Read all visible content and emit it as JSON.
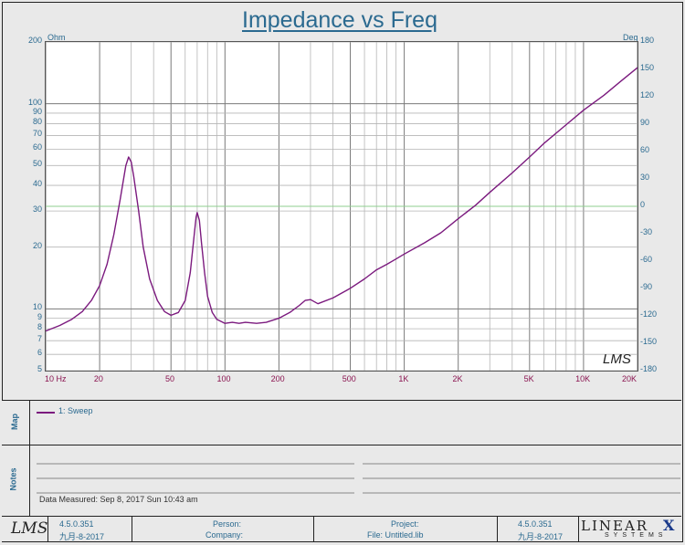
{
  "chart_data": {
    "type": "line",
    "title": "Impedance vs Freq",
    "left_unit": "Ohm",
    "right_unit": "Deg",
    "x_scale": "log",
    "y_scale": "log",
    "xlim": [
      10,
      20000
    ],
    "ylim": [
      5,
      200
    ],
    "y2lim": [
      -180,
      180
    ],
    "x_tick_labels": [
      "10 Hz",
      "20",
      "50",
      "100",
      "200",
      "500",
      "1K",
      "2K",
      "5K",
      "10K",
      "20K"
    ],
    "x_tick_values": [
      10,
      20,
      50,
      100,
      200,
      500,
      1000,
      2000,
      5000,
      10000,
      20000
    ],
    "y_tick_labels": [
      "200",
      "100",
      "90",
      "80",
      "70",
      "60",
      "50",
      "40",
      "30",
      "20",
      "10",
      "9",
      "8",
      "7",
      "6",
      "5"
    ],
    "y_tick_values": [
      200,
      100,
      90,
      80,
      70,
      60,
      50,
      40,
      30,
      20,
      10,
      9,
      8,
      7,
      6,
      5
    ],
    "y2_tick_labels": [
      "180",
      "150",
      "120",
      "90",
      "60",
      "30",
      "0",
      "-30",
      "-60",
      "-90",
      "-120",
      "-150",
      "-180"
    ],
    "y2_tick_values": [
      180,
      150,
      120,
      90,
      60,
      30,
      0,
      -30,
      -60,
      -90,
      -120,
      -150,
      -180
    ],
    "grid": true,
    "series": [
      {
        "name": "1: Sweep",
        "color": "#7b1a7e",
        "x": [
          10,
          12,
          14,
          16,
          18,
          20,
          22,
          24,
          26,
          28,
          29,
          30,
          31,
          33,
          35,
          38,
          42,
          46,
          50,
          55,
          60,
          64,
          67,
          69,
          70,
          72,
          74,
          77,
          80,
          85,
          90,
          100,
          110,
          120,
          130,
          150,
          170,
          200,
          230,
          260,
          280,
          300,
          330,
          400,
          500,
          600,
          700,
          800,
          900,
          1000,
          1300,
          1600,
          2000,
          2500,
          3000,
          4000,
          5000,
          6000,
          8000,
          10000,
          13000,
          16000,
          20000
        ],
        "y": [
          7.8,
          8.3,
          8.9,
          9.7,
          11,
          13,
          16.5,
          23,
          34,
          50,
          55,
          52,
          44,
          30,
          20,
          14,
          11,
          9.7,
          9.3,
          9.6,
          11,
          15,
          22,
          28,
          29.5,
          27,
          21,
          15,
          11.5,
          9.6,
          8.9,
          8.5,
          8.6,
          8.5,
          8.6,
          8.5,
          8.6,
          9,
          9.6,
          10.4,
          11,
          11.1,
          10.6,
          11.3,
          12.6,
          14,
          15.5,
          16.5,
          17.5,
          18.5,
          21,
          23.5,
          27.5,
          32,
          37,
          46,
          55,
          64,
          79,
          93,
          110,
          128,
          150
        ]
      }
    ]
  },
  "map_label": "Map",
  "notes_label": "Notes",
  "data_measured": "Data Measured: Sep 8, 2017 Sun 10:43 am",
  "plot_logo": "LMS",
  "footer": {
    "logo": "LMS",
    "version_left": "4.5.0.351",
    "date_left": "九月-8-2017",
    "person_label": "Person:",
    "company_label": "Company:",
    "project_label": "Project:",
    "file_label": "File: Untitled.lib",
    "version_right": "4.5.0.351",
    "date_right": "九月-8-2017",
    "brand": "LINEAR",
    "brand_x": "X",
    "brand_sub": "SYSTEMS"
  }
}
